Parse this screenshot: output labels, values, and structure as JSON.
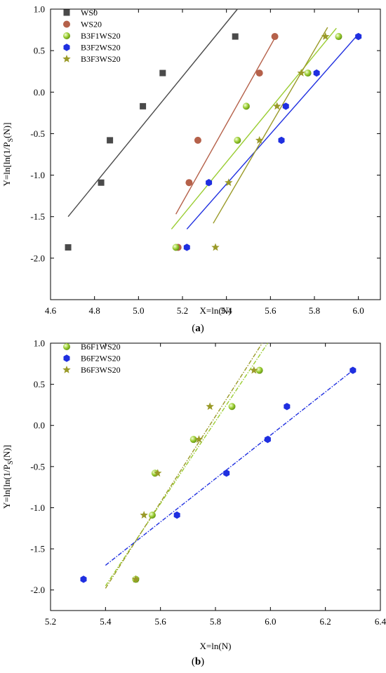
{
  "chart_data": [
    {
      "type": "scatter",
      "panel_label": "a",
      "xlabel": "X=ln(N)",
      "ylabel_main": "Y=ln[ln(1/P",
      "ylabel_sub": "S",
      "ylabel_tail": "(N)]",
      "xlim": [
        4.6,
        6.1
      ],
      "ylim": [
        -2.5,
        1.0
      ],
      "xticks": [
        4.6,
        4.8,
        5.0,
        5.2,
        5.4,
        5.6,
        5.8,
        6.0
      ],
      "xtick_labels": [
        "4.6",
        "4.8",
        "5.0",
        "5.2",
        "5.4",
        "5.6",
        "5.8",
        "6.0"
      ],
      "yticks": [
        -2.0,
        -1.5,
        -1.0,
        -0.5,
        0.0,
        0.5,
        1.0
      ],
      "ytick_labels": [
        "-2.0",
        "-1.5",
        "-1.0",
        "-0.5",
        "0.0",
        "0.5",
        "1.0"
      ],
      "legend_position": "top-left",
      "series": [
        {
          "name": "WS0",
          "marker": "square",
          "color": "#4a4a4a",
          "x": [
            4.68,
            4.83,
            4.87,
            5.02,
            5.11,
            5.44
          ],
          "y": [
            -1.87,
            -1.09,
            -0.58,
            -0.17,
            0.23,
            0.67
          ],
          "fit": {
            "x": [
              4.68,
              5.45
            ],
            "y": [
              -1.5,
              1.0
            ]
          }
        },
        {
          "name": "WS20",
          "marker": "circle",
          "color": "#b5614a",
          "x": [
            5.18,
            5.23,
            5.27,
            5.55,
            5.62
          ],
          "y": [
            -1.87,
            -1.09,
            -0.58,
            0.23,
            0.67
          ],
          "fit": {
            "x": [
              5.17,
              5.63
            ],
            "y": [
              -1.47,
              0.7
            ]
          }
        },
        {
          "name": "B3F1WS20",
          "marker": "sphere",
          "color": "#9acd32",
          "x": [
            5.17,
            5.45,
            5.49,
            5.77,
            5.91
          ],
          "y": [
            -1.87,
            -0.58,
            -0.17,
            0.23,
            0.67
          ],
          "fit": {
            "x": [
              5.15,
              5.9
            ],
            "y": [
              -1.65,
              0.77
            ]
          }
        },
        {
          "name": "B3F2WS20",
          "marker": "hexagon",
          "color": "#1f2fe0",
          "x": [
            5.22,
            5.32,
            5.65,
            5.67,
            5.81,
            6.0
          ],
          "y": [
            -1.87,
            -1.09,
            -0.58,
            -0.17,
            0.23,
            0.67
          ],
          "fit": {
            "x": [
              5.22,
              6.0
            ],
            "y": [
              -1.65,
              0.7
            ]
          }
        },
        {
          "name": "B3F3WS20",
          "marker": "star",
          "color": "#9a9a28",
          "x": [
            5.35,
            5.41,
            5.55,
            5.63,
            5.74,
            5.85
          ],
          "y": [
            -1.87,
            -1.09,
            -0.58,
            -0.17,
            0.23,
            0.67
          ],
          "fit": {
            "x": [
              5.34,
              5.86
            ],
            "y": [
              -1.58,
              0.78
            ]
          }
        }
      ]
    },
    {
      "type": "scatter",
      "panel_label": "b",
      "xlabel": "X=ln(N)",
      "ylabel_main": "Y=ln[ln(1/P",
      "ylabel_sub": "S",
      "ylabel_tail": "(N)]",
      "xlim": [
        5.2,
        6.4
      ],
      "ylim": [
        -2.25,
        1.0
      ],
      "xticks": [
        5.2,
        5.4,
        5.6,
        5.8,
        6.0,
        6.2,
        6.4
      ],
      "xtick_labels": [
        "5.2",
        "5.4",
        "5.6",
        "5.8",
        "6.0",
        "6.2",
        "6.4"
      ],
      "yticks": [
        -2.0,
        -1.5,
        -1.0,
        -0.5,
        0.0,
        0.5,
        1.0
      ],
      "ytick_labels": [
        "-2.0",
        "-1.5",
        "-1.0",
        "-0.5",
        "0.0",
        "0.5",
        "1.0"
      ],
      "legend_position": "top-left",
      "series": [
        {
          "name": "B6F1WS20",
          "marker": "sphere",
          "color": "#9acd32",
          "x": [
            5.51,
            5.57,
            5.58,
            5.72,
            5.86,
            5.96
          ],
          "y": [
            -1.87,
            -1.09,
            -0.58,
            -0.17,
            0.23,
            0.67
          ],
          "fit": {
            "x": [
              5.4,
              5.99
            ],
            "y": [
              -1.95,
              1.0
            ]
          }
        },
        {
          "name": "B6F2WS20",
          "marker": "hexagon",
          "color": "#1f2fe0",
          "x": [
            5.32,
            5.66,
            5.84,
            5.99,
            6.06,
            6.3
          ],
          "y": [
            -1.87,
            -1.09,
            -0.58,
            -0.17,
            0.23,
            0.67
          ],
          "fit": {
            "x": [
              5.4,
              6.3
            ],
            "y": [
              -1.7,
              0.67
            ]
          }
        },
        {
          "name": "B6F3WS20",
          "marker": "star",
          "color": "#9a9a28",
          "x": [
            5.51,
            5.54,
            5.59,
            5.74,
            5.78,
            5.94
          ],
          "y": [
            -1.87,
            -1.09,
            -0.58,
            -0.17,
            0.23,
            0.67
          ],
          "fit": {
            "x": [
              5.4,
              5.97
            ],
            "y": [
              -1.98,
              1.0
            ]
          }
        }
      ]
    }
  ]
}
